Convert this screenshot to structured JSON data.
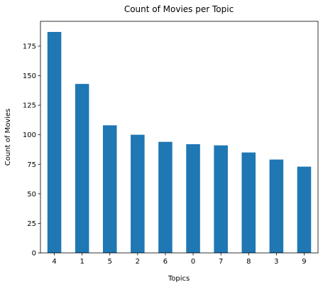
{
  "chart_data": {
    "type": "bar",
    "title": "Count of Movies per Topic",
    "xlabel": "Topics",
    "ylabel": "Count of Movies",
    "categories": [
      "4",
      "1",
      "5",
      "2",
      "6",
      "0",
      "7",
      "8",
      "3",
      "9"
    ],
    "values": [
      187,
      143,
      108,
      100,
      94,
      92,
      91,
      85,
      79,
      73
    ],
    "ylim": [
      0,
      196
    ],
    "yticks": [
      0,
      25,
      50,
      75,
      100,
      125,
      150,
      175
    ],
    "grid": false,
    "bar_color": "#1f77b4"
  }
}
